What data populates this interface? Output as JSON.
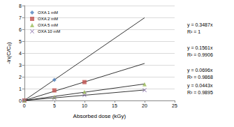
{
  "chart_data": {
    "type": "scatter",
    "x_label": "Absorbed dose (kGy)",
    "y_label": "-ln(C/C₀)",
    "xlim": [
      0,
      25
    ],
    "xticks": [
      0,
      5,
      10,
      15,
      20,
      25
    ],
    "ylim": [
      0,
      8
    ],
    "yticks": [
      0,
      1,
      2,
      3,
      4,
      5,
      6,
      7,
      8
    ],
    "grid": true,
    "legend": "top-left",
    "series": [
      {
        "name": "OXA 1 mM",
        "color": "#4f81bd",
        "marker": "diamond",
        "x": [
          0,
          5
        ],
        "values": [
          0,
          1.74
        ],
        "fit": {
          "slope": 0.3487,
          "label": "y = 0.3487x",
          "r2_label": "R² = 1"
        }
      },
      {
        "name": "OXA 2 mM",
        "color": "#c0504d",
        "marker": "square",
        "x": [
          0,
          5,
          10
        ],
        "values": [
          0,
          0.85,
          1.55
        ],
        "fit": {
          "slope": 0.1561,
          "label": "y = 0.1561x",
          "r2_label": "R² = 0.9906"
        }
      },
      {
        "name": "OXA 5 mM",
        "color": "#9bbb59",
        "marker": "triangle",
        "x": [
          0,
          5,
          10,
          20
        ],
        "values": [
          0,
          0.3,
          0.72,
          1.37
        ],
        "fit": {
          "slope": 0.0696,
          "label": "y = 0.0696x",
          "r2_label": "R² = 0.9868"
        }
      },
      {
        "name": "OXA 10 mM",
        "color": "#8064a2",
        "marker": "x",
        "x": [
          0,
          5,
          10,
          20
        ],
        "values": [
          0,
          0.2,
          0.45,
          0.87
        ],
        "fit": {
          "slope": 0.0443,
          "label": "y = 0.0443x",
          "r2_label": "R² = 0.9895"
        }
      }
    ]
  }
}
